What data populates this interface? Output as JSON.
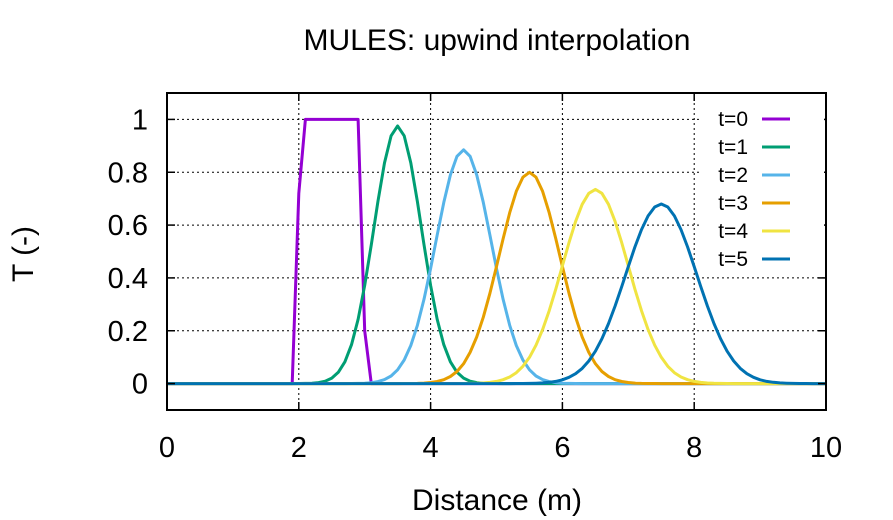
{
  "chart_data": {
    "type": "line",
    "title": "MULES: upwind interpolation",
    "xlabel": "Distance (m)",
    "ylabel": "T (-)",
    "xlim": [
      0,
      10
    ],
    "ylim": [
      -0.1,
      1.1
    ],
    "xticks": [
      "0",
      "2",
      "4",
      "6",
      "8",
      "10"
    ],
    "yticks": [
      "0",
      "0.2",
      "0.4",
      "0.6",
      "0.8",
      "1"
    ],
    "grid": true,
    "legend_position": "top-right",
    "colors": {
      "t0": "#9400d3",
      "t1": "#009e73",
      "t2": "#56b4e9",
      "t3": "#e69f00",
      "t4": "#f0e442",
      "t5": "#0072b2"
    },
    "series": [
      {
        "name": "t=0",
        "color": "#9400d3",
        "x": [
          0,
          1.9,
          2.0,
          2.1,
          2.9,
          3.0,
          3.1,
          10
        ],
        "y": [
          0,
          0,
          0.72,
          1.0,
          1.0,
          0.2,
          0,
          0
        ]
      },
      {
        "name": "t=1",
        "color": "#009e73",
        "peak_x": 3.5,
        "peak_y": 0.975,
        "width": 0.36
      },
      {
        "name": "t=2",
        "color": "#56b4e9",
        "peak_x": 4.5,
        "peak_y": 0.885,
        "width": 0.42
      },
      {
        "name": "t=3",
        "color": "#e69f00",
        "peak_x": 5.5,
        "peak_y": 0.8,
        "width": 0.46
      },
      {
        "name": "t=4",
        "color": "#f0e442",
        "peak_x": 6.5,
        "peak_y": 0.735,
        "width": 0.5
      },
      {
        "name": "t=5",
        "color": "#0072b2",
        "peak_x": 7.5,
        "peak_y": 0.68,
        "width": 0.54
      }
    ]
  }
}
